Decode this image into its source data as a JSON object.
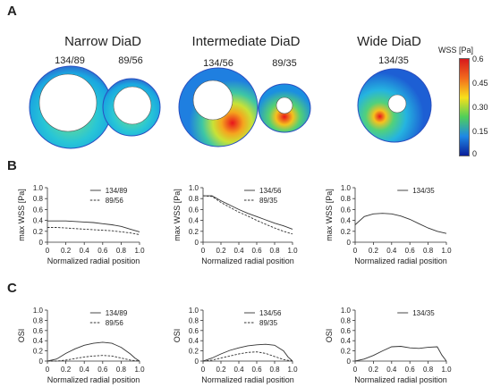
{
  "panel_letters": {
    "a": "A",
    "b": "B",
    "c": "C"
  },
  "panel_a": {
    "groups": [
      {
        "title": "Narrow DiaD",
        "labels": [
          "134/89",
          "89/56"
        ]
      },
      {
        "title": "Intermediate DiaD",
        "labels": [
          "134/56",
          "89/35"
        ]
      },
      {
        "title": "Wide DiaD",
        "labels": [
          "134/35"
        ]
      }
    ],
    "colorbar": {
      "title": "WSS [Pa]",
      "ticks": [
        "0.6",
        "0.45",
        "0.30",
        "0.15",
        "0"
      ],
      "colors": [
        "#d7191c",
        "#f26b1d",
        "#f7e01b",
        "#4fcf5a",
        "#1e88e5",
        "#0b1f9a"
      ]
    }
  },
  "chart_data": [
    {
      "type": "line",
      "panel": "B",
      "xlabel": "Normalized radial position",
      "ylabel": "max WSS [Pa]",
      "xlim": [
        0,
        1.0
      ],
      "ylim": [
        0,
        1.0
      ],
      "xticks": [
        "0",
        "0.2",
        "0.4",
        "0.6",
        "0.8",
        "1.0"
      ],
      "yticks": [
        "0",
        "0.2",
        "0.4",
        "0.6",
        "0.8",
        "1.0"
      ],
      "series": [
        {
          "name": "134/89",
          "style": "solid",
          "x": [
            0,
            0.1,
            0.2,
            0.3,
            0.4,
            0.5,
            0.6,
            0.7,
            0.8,
            0.9,
            1.0
          ],
          "values": [
            0.39,
            0.39,
            0.39,
            0.38,
            0.37,
            0.36,
            0.34,
            0.32,
            0.29,
            0.24,
            0.19
          ]
        },
        {
          "name": "89/56",
          "style": "dashed",
          "x": [
            0,
            0.1,
            0.2,
            0.3,
            0.4,
            0.5,
            0.6,
            0.7,
            0.8,
            0.9,
            1.0
          ],
          "values": [
            0.27,
            0.27,
            0.26,
            0.25,
            0.24,
            0.23,
            0.22,
            0.21,
            0.19,
            0.17,
            0.14
          ]
        }
      ]
    },
    {
      "type": "line",
      "panel": "B",
      "xlabel": "Normalized radial position",
      "ylabel": "max WSS [Pa]",
      "xlim": [
        0,
        1.0
      ],
      "ylim": [
        0,
        1.0
      ],
      "xticks": [
        "0",
        "0.2",
        "0.4",
        "0.6",
        "0.8",
        "1.0"
      ],
      "yticks": [
        "0",
        "0.2",
        "0.4",
        "0.6",
        "0.8",
        "1.0"
      ],
      "series": [
        {
          "name": "134/56",
          "style": "solid",
          "x": [
            0,
            0.1,
            0.2,
            0.3,
            0.4,
            0.5,
            0.6,
            0.7,
            0.8,
            0.9,
            1.0
          ],
          "values": [
            0.85,
            0.85,
            0.76,
            0.68,
            0.6,
            0.53,
            0.47,
            0.41,
            0.35,
            0.3,
            0.24
          ]
        },
        {
          "name": "89/35",
          "style": "dashed",
          "x": [
            0,
            0.1,
            0.2,
            0.3,
            0.4,
            0.5,
            0.6,
            0.7,
            0.8,
            0.9,
            1.0
          ],
          "values": [
            0.85,
            0.84,
            0.73,
            0.64,
            0.55,
            0.48,
            0.4,
            0.33,
            0.26,
            0.2,
            0.15
          ]
        }
      ]
    },
    {
      "type": "line",
      "panel": "B",
      "xlabel": "Normalized radial position",
      "ylabel": "max WSS [Pa]",
      "xlim": [
        0,
        1.0
      ],
      "ylim": [
        0,
        1.0
      ],
      "xticks": [
        "0",
        "0.2",
        "0.4",
        "0.6",
        "0.8",
        "1.0"
      ],
      "yticks": [
        "0",
        "0.2",
        "0.4",
        "0.6",
        "0.8",
        "1.0"
      ],
      "series": [
        {
          "name": "134/35",
          "style": "solid",
          "x": [
            0,
            0.1,
            0.2,
            0.3,
            0.4,
            0.5,
            0.6,
            0.7,
            0.8,
            0.9,
            1.0
          ],
          "values": [
            0.32,
            0.47,
            0.52,
            0.53,
            0.52,
            0.48,
            0.42,
            0.34,
            0.26,
            0.2,
            0.16
          ]
        }
      ]
    },
    {
      "type": "line",
      "panel": "C",
      "xlabel": "Normalized radial position",
      "ylabel": "OSI",
      "xlim": [
        0,
        1.0
      ],
      "ylim": [
        0,
        1.0
      ],
      "xticks": [
        "0",
        "0.2",
        "0.4",
        "0.6",
        "0.8",
        "1.0"
      ],
      "yticks": [
        "0",
        "0.2",
        "0.4",
        "0.6",
        "0.8",
        "1.0"
      ],
      "series": [
        {
          "name": "134/89",
          "style": "solid",
          "x": [
            0,
            0.1,
            0.2,
            0.3,
            0.4,
            0.5,
            0.6,
            0.7,
            0.8,
            0.9,
            0.95,
            1.0
          ],
          "values": [
            0.0,
            0.04,
            0.15,
            0.24,
            0.31,
            0.35,
            0.37,
            0.35,
            0.27,
            0.14,
            0.06,
            0.0
          ]
        },
        {
          "name": "89/56",
          "style": "dashed",
          "x": [
            0,
            0.1,
            0.2,
            0.3,
            0.4,
            0.5,
            0.6,
            0.7,
            0.8,
            0.9,
            1.0
          ],
          "values": [
            0.0,
            0.0,
            0.02,
            0.05,
            0.08,
            0.1,
            0.11,
            0.1,
            0.06,
            0.02,
            0.0
          ]
        }
      ]
    },
    {
      "type": "line",
      "panel": "C",
      "xlabel": "Normalized radial position",
      "ylabel": "OSI",
      "xlim": [
        0,
        1.0
      ],
      "ylim": [
        0,
        1.0
      ],
      "xticks": [
        "0",
        "0.2",
        "0.4",
        "0.6",
        "0.8",
        "1.0"
      ],
      "yticks": [
        "0",
        "0.2",
        "0.4",
        "0.6",
        "0.8",
        "1.0"
      ],
      "series": [
        {
          "name": "134/56",
          "style": "solid",
          "x": [
            0,
            0.1,
            0.2,
            0.3,
            0.4,
            0.5,
            0.6,
            0.7,
            0.8,
            0.9,
            0.95,
            1.0
          ],
          "values": [
            0.0,
            0.06,
            0.14,
            0.21,
            0.26,
            0.3,
            0.32,
            0.33,
            0.31,
            0.2,
            0.08,
            0.0
          ]
        },
        {
          "name": "89/35",
          "style": "dashed",
          "x": [
            0,
            0.1,
            0.2,
            0.3,
            0.4,
            0.5,
            0.6,
            0.7,
            0.8,
            0.9,
            1.0
          ],
          "values": [
            0.0,
            0.02,
            0.06,
            0.1,
            0.14,
            0.17,
            0.18,
            0.15,
            0.09,
            0.03,
            0.0
          ]
        }
      ]
    },
    {
      "type": "line",
      "panel": "C",
      "xlabel": "Normalized radial position",
      "ylabel": "OSI",
      "xlim": [
        0,
        1.0
      ],
      "ylim": [
        0,
        1.0
      ],
      "xticks": [
        "0",
        "0.2",
        "0.4",
        "0.6",
        "0.8",
        "1.0"
      ],
      "yticks": [
        "0",
        "0.2",
        "0.4",
        "0.6",
        "0.8",
        "1.0"
      ],
      "series": [
        {
          "name": "134/35",
          "style": "solid",
          "x": [
            0,
            0.1,
            0.2,
            0.3,
            0.4,
            0.5,
            0.6,
            0.7,
            0.8,
            0.9,
            0.95,
            1.0
          ],
          "values": [
            0.0,
            0.04,
            0.11,
            0.2,
            0.28,
            0.29,
            0.26,
            0.25,
            0.27,
            0.28,
            0.12,
            0.0
          ]
        }
      ]
    }
  ]
}
